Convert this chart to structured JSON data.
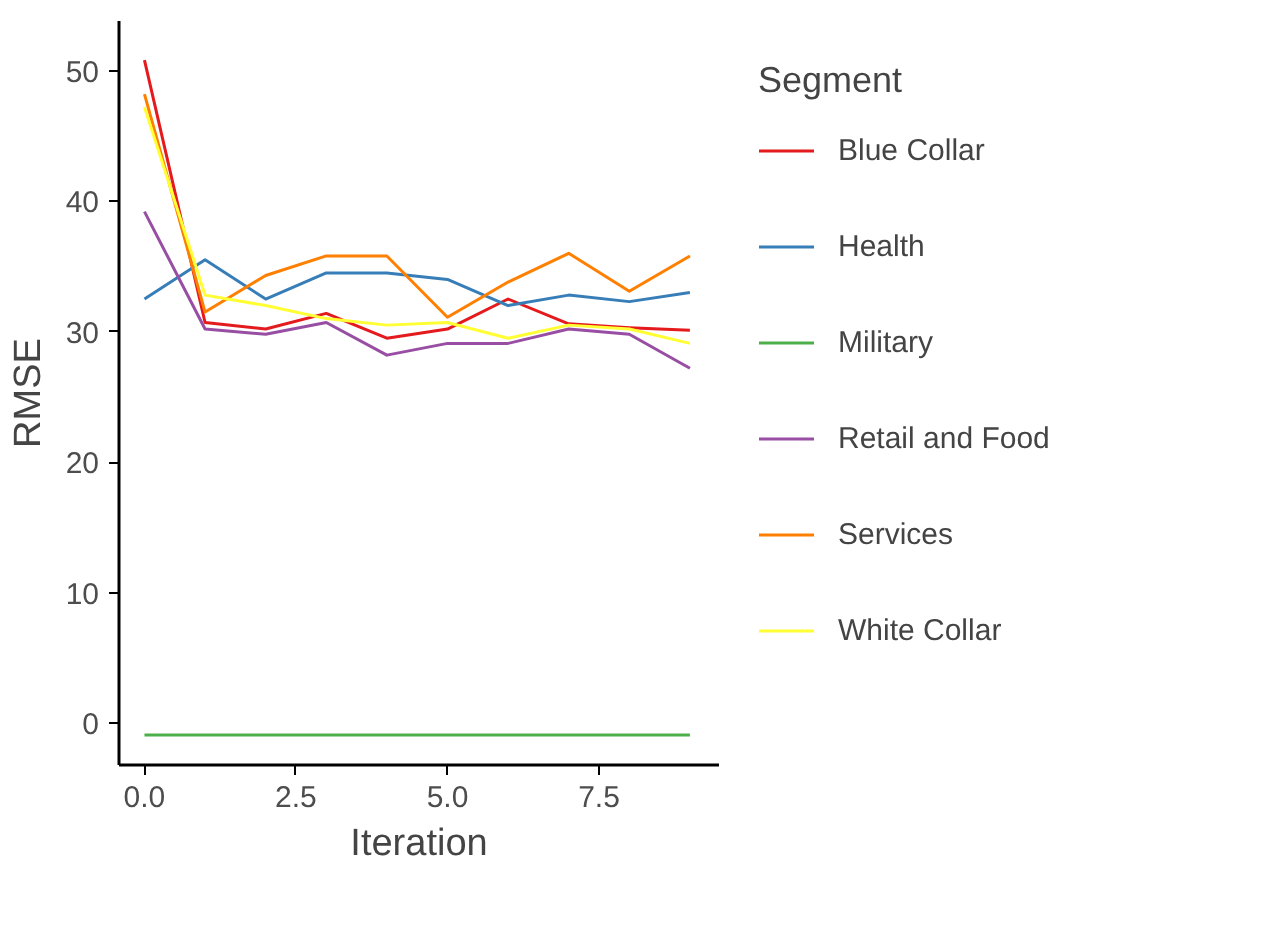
{
  "chart_data": {
    "type": "line",
    "xlabel": "Iteration",
    "ylabel": "RMSE",
    "legend_title": "Segment",
    "legend": "right",
    "grid": false,
    "x": [
      0,
      1,
      2,
      3,
      4,
      5,
      6,
      7,
      8,
      9
    ],
    "xlim": [
      -0.42,
      9.48
    ],
    "xticks": [
      {
        "value": 0,
        "label": "0.0"
      },
      {
        "value": 2.5,
        "label": "2.5"
      },
      {
        "value": 5,
        "label": "5.0"
      },
      {
        "value": 7.5,
        "label": "7.5"
      }
    ],
    "ylim": [
      -3.2,
      53.8
    ],
    "yticks": [
      0,
      10,
      20,
      30,
      40,
      50
    ],
    "series": [
      {
        "name": "Blue Collar",
        "color": "#e41a1c",
        "values": [
          50.8,
          30.7,
          30.2,
          31.4,
          29.5,
          30.2,
          32.5,
          30.6,
          30.3,
          30.1
        ]
      },
      {
        "name": "Health",
        "color": "#377eb8",
        "values": [
          32.5,
          35.5,
          32.5,
          34.5,
          34.5,
          34,
          32,
          32.8,
          32.3,
          33
        ]
      },
      {
        "name": "Military",
        "color": "#4daf4a",
        "values": [
          -0.9,
          -0.9,
          -0.9,
          -0.9,
          -0.9,
          -0.9,
          -0.9,
          -0.9,
          -0.9,
          -0.9
        ]
      },
      {
        "name": "Retail and Food",
        "color": "#984ea3",
        "values": [
          39.2,
          30.2,
          29.8,
          30.7,
          28.2,
          29.1,
          29.1,
          30.2,
          29.8,
          27.2
        ]
      },
      {
        "name": "Services",
        "color": "#ff7f00",
        "values": [
          48.2,
          31.5,
          34.3,
          35.8,
          35.8,
          31.1,
          33.8,
          36,
          33.1,
          35.8
        ]
      },
      {
        "name": "White Collar",
        "color": "#ffff33",
        "values": [
          47.2,
          32.8,
          32,
          31,
          30.5,
          30.7,
          29.5,
          30.5,
          30.2,
          29.1
        ]
      }
    ]
  }
}
